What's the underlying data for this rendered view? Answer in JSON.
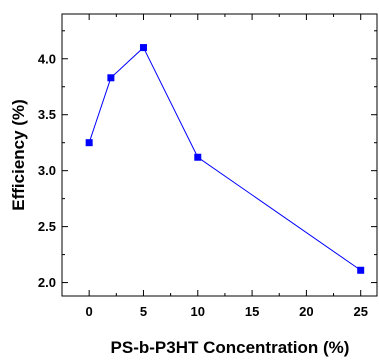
{
  "chart_data": {
    "type": "line",
    "xlabel": "PS-b-P3HT Concentration (%)",
    "ylabel": "Efficiency (%)",
    "xlim": [
      -2.5,
      26.5
    ],
    "ylim": [
      1.88,
      4.4
    ],
    "x_ticks": [
      0,
      5,
      10,
      15,
      20,
      25
    ],
    "x_tick_labels": [
      "0",
      "5",
      "10",
      "15",
      "20",
      "25"
    ],
    "y_ticks": [
      2.0,
      2.5,
      3.0,
      3.5,
      4.0
    ],
    "y_tick_labels": [
      "2.0",
      "2.5",
      "3.0",
      "3.5",
      "4.0"
    ],
    "grid": false,
    "series": [
      {
        "marker": "square",
        "color": "#0000ff",
        "x": [
          0,
          2,
          5,
          10,
          25
        ],
        "y": [
          3.25,
          3.83,
          4.1,
          3.12,
          2.11
        ]
      }
    ]
  }
}
